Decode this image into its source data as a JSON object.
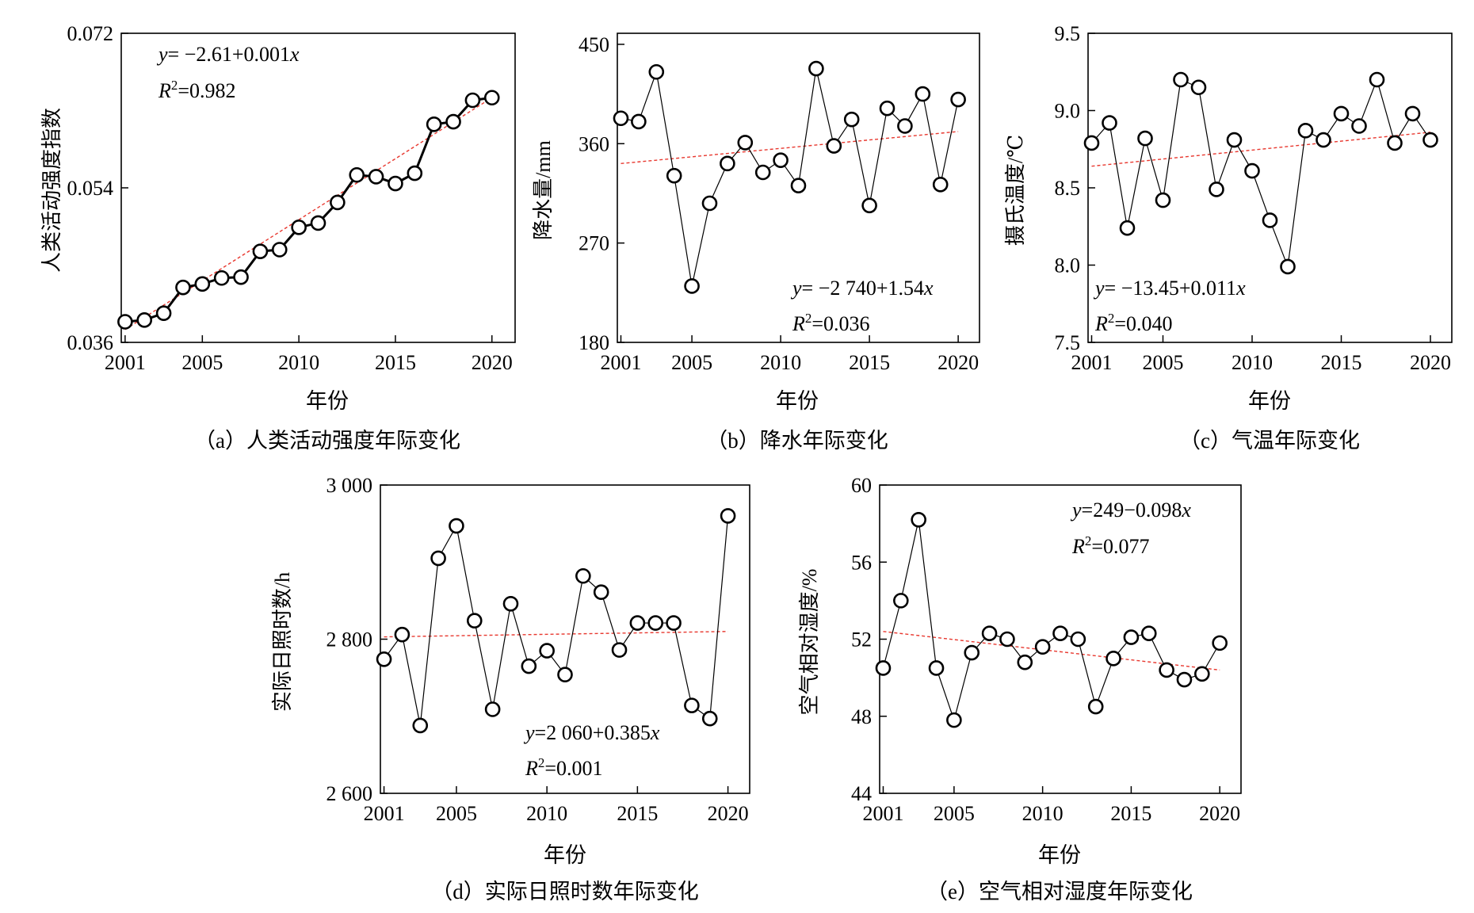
{
  "figure": {
    "x_label": "年份",
    "panels": [
      {
        "id": "a",
        "caption": "（a）人类活动强度年际变化",
        "ylabel": "人类活动强度指数",
        "equation": "y= −2.61+0.001x",
        "eq_prefix": "y",
        "eq_rest": "= −2.61+0.001",
        "eq_var": "x",
        "r2_value": "=0.982"
      },
      {
        "id": "b",
        "caption": "（b）降水年际变化",
        "ylabel": "降水量/mm",
        "equation": "y= −2 740+1.54x",
        "eq_prefix": "y",
        "eq_rest": "= −2 740+1.54",
        "eq_var": "x",
        "r2_value": "=0.036"
      },
      {
        "id": "c",
        "caption": "（c）气温年际变化",
        "ylabel": "摄氏温度/℃",
        "equation": "y= −13.45+0.011x",
        "eq_prefix": "y",
        "eq_rest": "= −13.45+0.011",
        "eq_var": "x",
        "r2_value": "=0.040"
      },
      {
        "id": "d",
        "caption": "（d）实际日照时数年际变化",
        "ylabel": "实际日照时数/h",
        "equation": "y=2 060+0.385x",
        "eq_prefix": "y",
        "eq_rest": "=2 060+0.385",
        "eq_var": "x",
        "r2_value": "=0.001"
      },
      {
        "id": "e",
        "caption": "（e）空气相对湿度年际变化",
        "ylabel": "空气相对湿度/%",
        "equation": "y=249−0.098x",
        "eq_prefix": "y",
        "eq_rest": "=249−0.098",
        "eq_var": "x",
        "r2_value": "=0.077"
      }
    ]
  },
  "chart_data": [
    {
      "type": "line",
      "title": "（a）人类活动强度年际变化",
      "xlabel": "年份",
      "ylabel": "人类活动强度指数",
      "xlim": [
        2000.8,
        2021.2
      ],
      "ylim": [
        0.036,
        0.072
      ],
      "xticks": [
        2001,
        2005,
        2010,
        2015,
        2020
      ],
      "yticks": [
        0.036,
        0.054,
        0.072
      ],
      "ytick_labels": [
        "0.036",
        "0.054",
        "0.072"
      ],
      "x": [
        2001,
        2002,
        2003,
        2004,
        2005,
        2006,
        2007,
        2008,
        2009,
        2010,
        2011,
        2012,
        2013,
        2014,
        2015,
        2016,
        2017,
        2018,
        2019,
        2020
      ],
      "series": [
        {
          "values": [
            0.0384,
            0.0386,
            0.0394,
            0.0424,
            0.0428,
            0.0435,
            0.0436,
            0.0466,
            0.0468,
            0.0494,
            0.0499,
            0.0523,
            0.0555,
            0.0553,
            0.0545,
            0.0557,
            0.0614,
            0.0617,
            0.0642,
            0.0645
          ]
        }
      ],
      "trend": {
        "slope": 0.001,
        "intercept": -2.61,
        "r2": 0.982,
        "from": 2001,
        "to": 2020,
        "y_start": 0.0375,
        "y_end": 0.0645,
        "color": "#e8382f",
        "style": "dashed"
      },
      "line_style": "thick",
      "marker": "open-circle",
      "grid": false
    },
    {
      "type": "line",
      "title": "（b）降水年际变化",
      "xlabel": "年份",
      "ylabel": "降水量/mm",
      "xlim": [
        2000.8,
        2021.2
      ],
      "ylim": [
        180,
        460
      ],
      "xticks": [
        2001,
        2005,
        2010,
        2015,
        2020
      ],
      "yticks": [
        180,
        270,
        360,
        450
      ],
      "ytick_labels": [
        "180",
        "270",
        "360",
        "450"
      ],
      "x": [
        2001,
        2002,
        2003,
        2004,
        2005,
        2006,
        2007,
        2008,
        2009,
        2010,
        2011,
        2012,
        2013,
        2014,
        2015,
        2016,
        2017,
        2018,
        2019,
        2020
      ],
      "series": [
        {
          "values": [
            383,
            380,
            425,
            331,
            231,
            306,
            342,
            361,
            334,
            345,
            322,
            428,
            358,
            382,
            304,
            392,
            376,
            405,
            323,
            400
          ]
        }
      ],
      "trend": {
        "slope": 1.54,
        "intercept": -2740,
        "r2": 0.036,
        "from": 2001,
        "to": 2020,
        "y_start": 342,
        "y_end": 371,
        "color": "#e8382f",
        "style": "dashed"
      },
      "line_style": "thin",
      "marker": "open-circle",
      "grid": false
    },
    {
      "type": "line",
      "title": "（c）气温年际变化",
      "xlabel": "年份",
      "ylabel": "摄氏温度/℃",
      "xlim": [
        2000.8,
        2021.2
      ],
      "ylim": [
        7.5,
        9.5
      ],
      "xticks": [
        2001,
        2005,
        2010,
        2015,
        2020
      ],
      "yticks": [
        7.5,
        8.0,
        8.5,
        9.0,
        9.5
      ],
      "ytick_labels": [
        "7.5",
        "8.0",
        "8.5",
        "9.0",
        "9.5"
      ],
      "x": [
        2001,
        2002,
        2003,
        2004,
        2005,
        2006,
        2007,
        2008,
        2009,
        2010,
        2011,
        2012,
        2013,
        2014,
        2015,
        2016,
        2017,
        2018,
        2019,
        2020
      ],
      "series": [
        {
          "values": [
            8.79,
            8.92,
            8.24,
            8.82,
            8.42,
            9.2,
            9.15,
            8.49,
            8.81,
            8.61,
            8.29,
            7.99,
            8.87,
            8.81,
            8.98,
            8.9,
            9.2,
            8.79,
            8.98,
            8.81
          ]
        }
      ],
      "trend": {
        "slope": 0.011,
        "intercept": -13.45,
        "r2": 0.04,
        "from": 2001,
        "to": 2020,
        "y_start": 8.64,
        "y_end": 8.86,
        "color": "#e8382f",
        "style": "dashed"
      },
      "line_style": "thin",
      "marker": "open-circle",
      "grid": false
    },
    {
      "type": "line",
      "title": "（d）实际日照时数年际变化",
      "xlabel": "年份",
      "ylabel": "实际日照时数/h",
      "xlim": [
        2000.8,
        2021.2
      ],
      "ylim": [
        2600,
        3000
      ],
      "xticks": [
        2001,
        2005,
        2010,
        2015,
        2020
      ],
      "yticks": [
        2600,
        2800,
        3000
      ],
      "ytick_labels": [
        "2 600",
        "2 800",
        "3 000"
      ],
      "x": [
        2001,
        2002,
        2003,
        2004,
        2005,
        2006,
        2007,
        2008,
        2009,
        2010,
        2011,
        2012,
        2013,
        2014,
        2015,
        2016,
        2017,
        2018,
        2019,
        2020
      ],
      "series": [
        {
          "values": [
            2774,
            2806,
            2688,
            2905,
            2947,
            2824,
            2709,
            2846,
            2765,
            2785,
            2754,
            2882,
            2861,
            2786,
            2821,
            2821,
            2821,
            2714,
            2697,
            2960
          ]
        }
      ],
      "trend": {
        "slope": 0.385,
        "intercept": 2060,
        "r2": 0.001,
        "from": 2001,
        "to": 2020,
        "y_start": 2803,
        "y_end": 2810,
        "color": "#e8382f",
        "style": "dashed"
      },
      "line_style": "thin",
      "marker": "open-circle",
      "grid": false
    },
    {
      "type": "line",
      "title": "（e）空气相对湿度年际变化",
      "xlabel": "年份",
      "ylabel": "空气相对湿度/%",
      "xlim": [
        2000.8,
        2021.2
      ],
      "ylim": [
        44,
        60
      ],
      "xticks": [
        2001,
        2005,
        2010,
        2015,
        2020
      ],
      "yticks": [
        44,
        48,
        52,
        56,
        60
      ],
      "ytick_labels": [
        "44",
        "48",
        "52",
        "56",
        "60"
      ],
      "x": [
        2001,
        2002,
        2003,
        2004,
        2005,
        2006,
        2007,
        2008,
        2009,
        2010,
        2011,
        2012,
        2013,
        2014,
        2015,
        2016,
        2017,
        2018,
        2019,
        2020
      ],
      "series": [
        {
          "values": [
            50.5,
            54.0,
            58.2,
            50.5,
            47.8,
            51.3,
            52.3,
            52.0,
            50.8,
            51.6,
            52.3,
            52.0,
            48.5,
            51.0,
            52.1,
            52.3,
            50.4,
            49.9,
            50.2,
            51.8
          ]
        }
      ],
      "trend": {
        "slope": -0.098,
        "intercept": 249,
        "r2": 0.077,
        "from": 2001,
        "to": 2020,
        "y_start": 52.4,
        "y_end": 50.4,
        "color": "#e8382f",
        "style": "dashed"
      },
      "line_style": "thin",
      "marker": "open-circle",
      "grid": false
    }
  ]
}
